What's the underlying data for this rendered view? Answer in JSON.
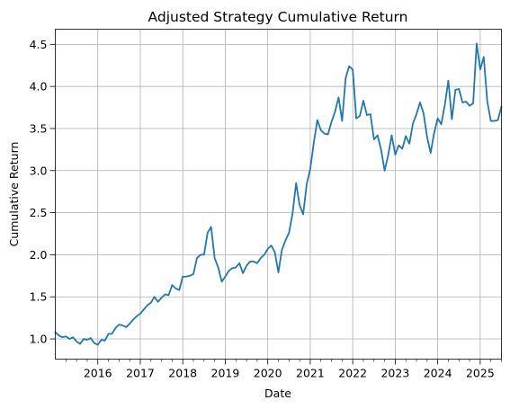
{
  "chart_data": {
    "type": "line",
    "title": "Adjusted Strategy Cumulative Return",
    "xlabel": "Date",
    "ylabel": "Cumulative Return",
    "xlim": [
      "2015-01",
      "2025-07"
    ],
    "ylim": [
      0.76,
      4.68
    ],
    "grid": true,
    "x_ticks": [
      "2016",
      "2017",
      "2018",
      "2019",
      "2020",
      "2021",
      "2022",
      "2023",
      "2024",
      "2025"
    ],
    "y_ticks": [
      "1.0",
      "1.5",
      "2.0",
      "2.5",
      "3.0",
      "3.5",
      "4.0",
      "4.5"
    ],
    "colors": {
      "line": "#1f77b4",
      "grid": "#b0b0b0"
    },
    "series": [
      {
        "x": [
          "2015-01",
          "2015-02",
          "2015-03",
          "2015-04",
          "2015-05",
          "2015-06",
          "2015-07",
          "2015-08",
          "2015-09",
          "2015-10",
          "2015-11",
          "2015-12",
          "2016-01",
          "2016-02",
          "2016-03",
          "2016-04",
          "2016-05",
          "2016-06",
          "2016-07",
          "2016-08",
          "2016-09",
          "2016-10",
          "2016-11",
          "2016-12",
          "2017-01",
          "2017-02",
          "2017-03",
          "2017-04",
          "2017-05",
          "2017-06",
          "2017-07",
          "2017-08",
          "2017-09",
          "2017-10",
          "2017-11",
          "2017-12",
          "2018-01",
          "2018-02",
          "2018-03",
          "2018-04",
          "2018-05",
          "2018-06",
          "2018-07",
          "2018-08",
          "2018-09",
          "2018-10",
          "2018-11",
          "2018-12",
          "2019-01",
          "2019-02",
          "2019-03",
          "2019-04",
          "2019-05",
          "2019-06",
          "2019-07",
          "2019-08",
          "2019-09",
          "2019-10",
          "2019-11",
          "2019-12",
          "2020-01",
          "2020-02",
          "2020-03",
          "2020-04",
          "2020-05",
          "2020-06",
          "2020-07",
          "2020-08",
          "2020-09",
          "2020-10",
          "2020-11",
          "2020-12",
          "2021-01",
          "2021-02",
          "2021-03",
          "2021-04",
          "2021-05",
          "2021-06",
          "2021-07",
          "2021-08",
          "2021-09",
          "2021-10",
          "2021-11",
          "2021-12",
          "2022-01",
          "2022-02",
          "2022-03",
          "2022-04",
          "2022-05",
          "2022-06",
          "2022-07",
          "2022-08",
          "2022-09",
          "2022-10",
          "2022-11",
          "2022-12",
          "2023-01",
          "2023-02",
          "2023-03",
          "2023-04",
          "2023-05",
          "2023-06",
          "2023-07",
          "2023-08",
          "2023-09",
          "2023-10",
          "2023-11",
          "2023-12",
          "2024-01",
          "2024-02",
          "2024-03",
          "2024-04",
          "2024-05",
          "2024-06",
          "2024-07",
          "2024-08",
          "2024-09",
          "2024-10",
          "2024-11",
          "2024-12",
          "2025-01",
          "2025-02",
          "2025-03",
          "2025-04",
          "2025-05",
          "2025-06",
          "2025-07"
        ],
        "y": [
          1.08,
          1.04,
          1.02,
          1.03,
          1.0,
          1.02,
          0.97,
          0.94,
          1.0,
          0.99,
          1.01,
          0.95,
          0.93,
          0.99,
          0.98,
          1.06,
          1.06,
          1.13,
          1.17,
          1.16,
          1.14,
          1.18,
          1.23,
          1.27,
          1.3,
          1.35,
          1.4,
          1.43,
          1.5,
          1.44,
          1.49,
          1.53,
          1.52,
          1.64,
          1.6,
          1.58,
          1.74,
          1.74,
          1.75,
          1.77,
          1.96,
          2.0,
          2.0,
          2.26,
          2.33,
          1.96,
          1.85,
          1.68,
          1.74,
          1.81,
          1.84,
          1.85,
          1.9,
          1.78,
          1.87,
          1.92,
          1.92,
          1.9,
          1.96,
          2.0,
          2.07,
          2.11,
          2.03,
          1.79,
          2.06,
          2.17,
          2.26,
          2.49,
          2.85,
          2.59,
          2.48,
          2.84,
          3.02,
          3.33,
          3.6,
          3.48,
          3.44,
          3.43,
          3.58,
          3.7,
          3.87,
          3.59,
          4.1,
          4.24,
          4.2,
          3.62,
          3.65,
          3.83,
          3.66,
          3.67,
          3.37,
          3.42,
          3.25,
          3.0,
          3.18,
          3.42,
          3.19,
          3.3,
          3.26,
          3.41,
          3.32,
          3.56,
          3.67,
          3.81,
          3.68,
          3.4,
          3.21,
          3.45,
          3.62,
          3.55,
          3.78,
          4.07,
          3.61,
          3.96,
          3.97,
          3.81,
          3.82,
          3.77,
          3.8,
          4.51,
          4.2,
          4.35,
          3.82,
          3.59,
          3.59,
          3.6,
          3.76
        ]
      }
    ]
  }
}
